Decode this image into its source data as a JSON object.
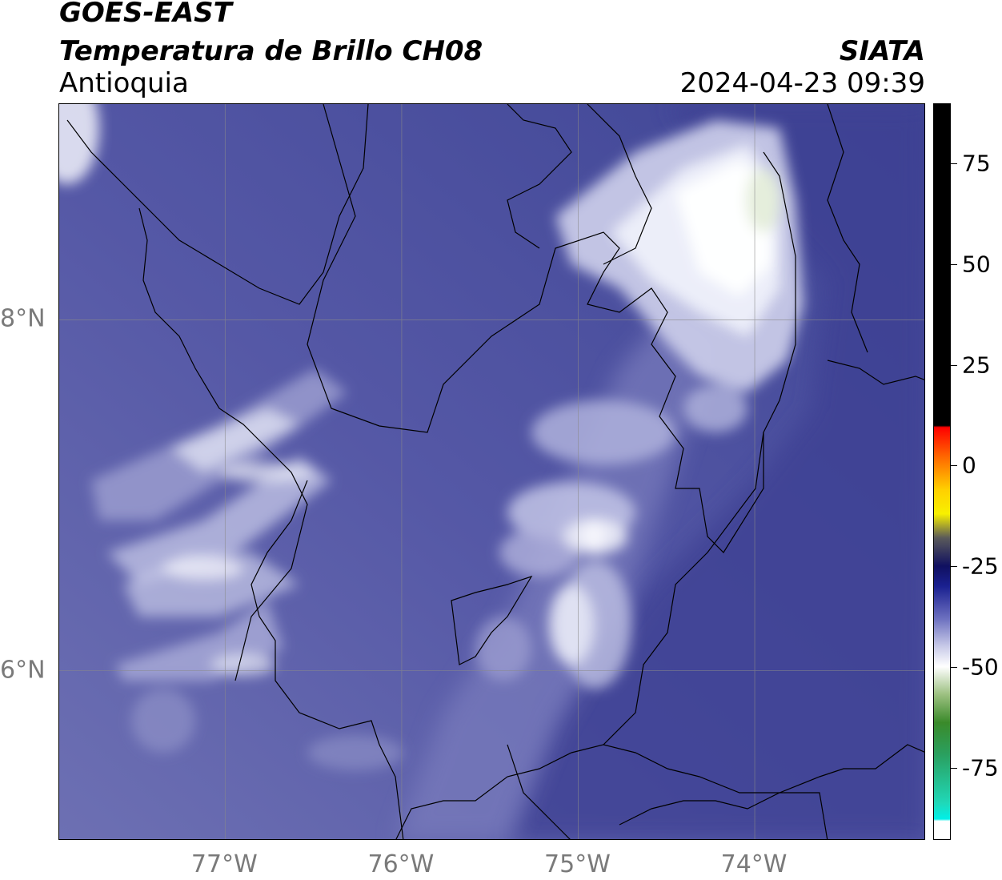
{
  "header": {
    "title_line1": "GOES-EAST",
    "title_line2": "Temperatura de Brillo CH08",
    "region": "Antioquia",
    "brand": "SIATA",
    "timestamp": "2024-04-23 09:39"
  },
  "map": {
    "x_axis": {
      "ticks": [
        {
          "value": -77,
          "label": "77°W"
        },
        {
          "value": -76,
          "label": "76°W"
        },
        {
          "value": -75,
          "label": "75°W"
        },
        {
          "value": -74,
          "label": "74°W"
        }
      ],
      "range": [
        -77.94,
        -73.03
      ]
    },
    "y_axis": {
      "ticks": [
        {
          "value": 8,
          "label": "8°N"
        },
        {
          "value": 6,
          "label": "6°N"
        }
      ],
      "range": [
        5.03,
        9.23
      ]
    },
    "colors": {
      "background": "#4a4f9c",
      "cold_cloud": "#f2f2fa",
      "gridline": "#8a8a8a",
      "border": "#000000"
    }
  },
  "colorbar": {
    "ticks": [
      {
        "value": 75,
        "label": "75"
      },
      {
        "value": 50,
        "label": "50"
      },
      {
        "value": 25,
        "label": "25"
      },
      {
        "value": 0,
        "label": "0"
      },
      {
        "value": -25,
        "label": "-25"
      },
      {
        "value": -50,
        "label": "-50"
      },
      {
        "value": -75,
        "label": "-75"
      }
    ],
    "range": [
      -93,
      90
    ]
  }
}
